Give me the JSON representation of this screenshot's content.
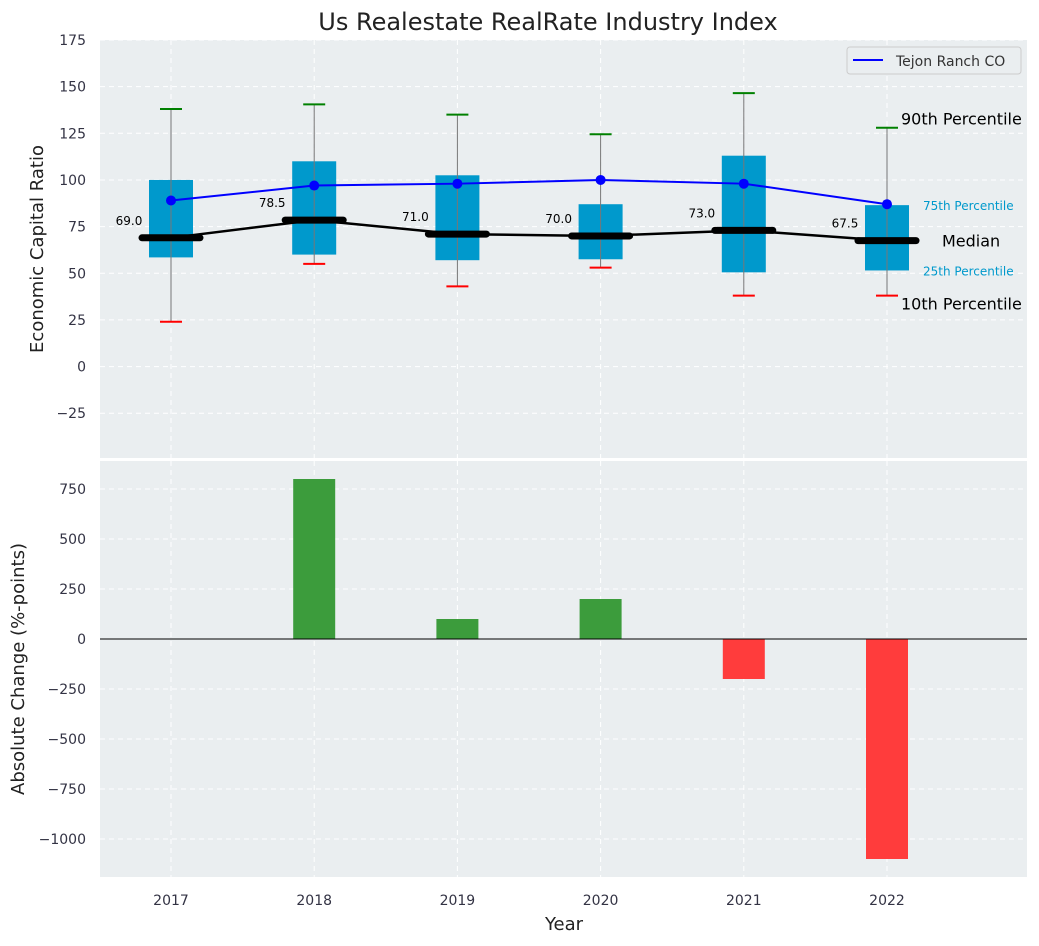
{
  "chart_data": [
    {
      "type": "box",
      "title": "Us Realestate RealRate Industry Index",
      "ylabel": "Economic Capital Ratio",
      "ylim": [
        -49,
        175
      ],
      "yticks": [
        -25,
        0,
        25,
        50,
        75,
        100,
        125,
        150,
        175
      ],
      "categories": [
        "2017",
        "2018",
        "2019",
        "2020",
        "2021",
        "2022"
      ],
      "p10": [
        24,
        55,
        43,
        53,
        38,
        38
      ],
      "p25": [
        58.5,
        60,
        57,
        57.5,
        50.5,
        51.5
      ],
      "median": [
        69.0,
        78.5,
        71.0,
        70.0,
        73.0,
        67.5
      ],
      "median_labels": [
        "69.0",
        "78.5",
        "71.0",
        "70.0",
        "73.0",
        "67.5"
      ],
      "p75": [
        100,
        110,
        102.5,
        87,
        113,
        86.5
      ],
      "p90": [
        138,
        140.5,
        135,
        124.5,
        146.5,
        128
      ],
      "series": [
        {
          "name": "Tejon Ranch CO",
          "values": [
            89,
            97,
            98,
            100,
            98,
            87
          ],
          "color": "#0000ff"
        }
      ],
      "legend": "top-right",
      "annotations": {
        "p90": "90th Percentile",
        "p75": "75th Percentile",
        "median": "Median",
        "p25": "25th Percentile",
        "p10": "10th Percentile"
      },
      "box_color": "#0099cc",
      "grid": true
    },
    {
      "type": "bar",
      "xlabel": "Year",
      "ylabel": "Absolute Change (%-points)",
      "ylim": [
        -1190,
        890
      ],
      "yticks": [
        -1000,
        -750,
        -500,
        -250,
        0,
        250,
        500,
        750
      ],
      "categories": [
        "2017",
        "2018",
        "2019",
        "2020",
        "2021",
        "2022"
      ],
      "values": [
        0,
        800,
        100,
        200,
        -200,
        -1100
      ],
      "pos_color": "#3c9c3c",
      "neg_color": "#ff3c3c",
      "grid": true
    }
  ]
}
